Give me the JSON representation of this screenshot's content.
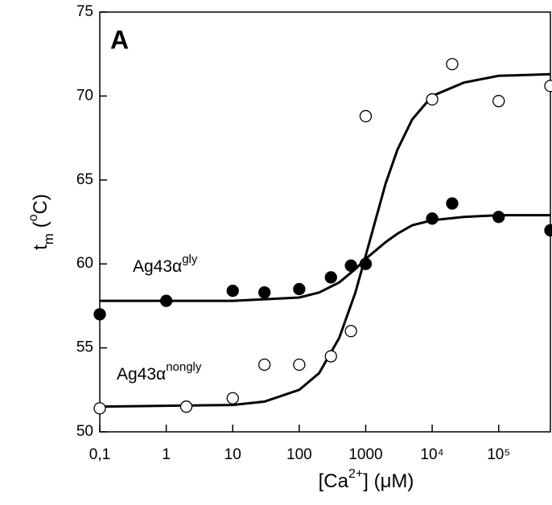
{
  "chart_data": {
    "type": "scatter",
    "panel_label": "A",
    "x_label": [
      "[Ca",
      "2+",
      "] (μM)"
    ],
    "y_label": [
      "t",
      "m",
      " (",
      "o",
      "C)"
    ],
    "annotations": [
      [
        "Ag43α",
        "gly"
      ],
      [
        "Ag43α",
        "nongly"
      ]
    ],
    "log_x": true,
    "xlim": [
      0.1,
      600000
    ],
    "ylim": [
      50,
      75
    ],
    "xticks": [
      {
        "value": 0.1,
        "label": "0,1"
      },
      1,
      10,
      100,
      1000,
      {
        "value": 10000,
        "label": "10⁴"
      },
      {
        "value": 100000,
        "label": "10⁵"
      }
    ],
    "yticks": [
      50,
      55,
      60,
      65,
      70,
      75
    ],
    "series": [
      {
        "marker": "filled",
        "color": "#000000",
        "x": [
          0.1,
          1,
          10,
          30,
          100,
          300,
          600,
          1000,
          10000,
          20000,
          100000,
          600000
        ],
        "values": [
          57.0,
          57.8,
          58.4,
          58.3,
          58.5,
          59.2,
          59.9,
          60.0,
          62.7,
          63.6,
          62.8,
          62.0
        ]
      },
      {
        "marker": "open",
        "color": "#000000",
        "x": [
          0.1,
          2,
          10,
          30,
          100,
          300,
          600,
          1000,
          10000,
          20000,
          100000,
          600000
        ],
        "values": [
          51.4,
          51.5,
          52.0,
          54.0,
          54.0,
          54.5,
          56.0,
          68.8,
          69.8,
          71.9,
          69.7,
          70.6
        ]
      }
    ],
    "fits": [
      {
        "color": "#000000",
        "x": [
          0.1,
          10,
          100,
          200,
          400,
          700,
          1000,
          2000,
          3000,
          5000,
          10000,
          30000,
          100000,
          600000
        ],
        "values": [
          57.8,
          57.8,
          58.0,
          58.3,
          58.9,
          59.7,
          60.3,
          61.3,
          61.8,
          62.3,
          62.6,
          62.8,
          62.9,
          62.9
        ]
      },
      {
        "color": "#000000",
        "x": [
          0.1,
          10,
          30,
          100,
          200,
          400,
          700,
          1000,
          2000,
          3000,
          5000,
          10000,
          30000,
          100000,
          600000
        ],
        "values": [
          51.5,
          51.6,
          51.8,
          52.5,
          53.5,
          55.6,
          58.3,
          60.5,
          64.8,
          66.8,
          68.6,
          70.0,
          70.8,
          71.2,
          71.3
        ]
      }
    ]
  }
}
